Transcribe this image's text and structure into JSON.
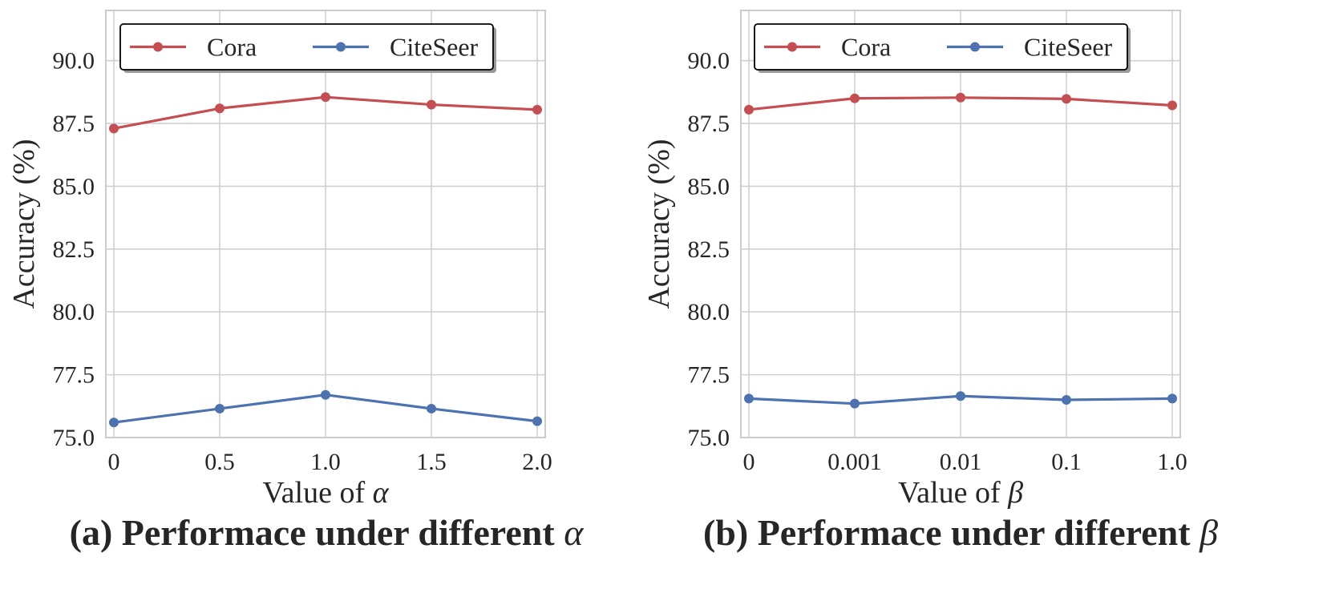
{
  "colors": {
    "cora": "#c44e52",
    "citeseer": "#4c72b0",
    "grid": "#d0d0d0",
    "text": "#262626"
  },
  "chart_data": [
    {
      "type": "line",
      "caption": {
        "prefix": "(a) Performace under different",
        "symbol": "α"
      },
      "xlabel": {
        "prefix": "Value of",
        "symbol": "α"
      },
      "ylabel": "Accuracy (%)",
      "categories": [
        "0",
        "0.5",
        "1.0",
        "1.5",
        "2.0"
      ],
      "ylim": [
        75.0,
        92.0
      ],
      "yticks": [
        "75.0",
        "77.5",
        "80.0",
        "82.5",
        "85.0",
        "87.5",
        "90.0"
      ],
      "grid": true,
      "legend": "top",
      "series": [
        {
          "name": "Cora",
          "color": "#c44e52",
          "values": [
            87.3,
            88.1,
            88.55,
            88.25,
            88.05
          ]
        },
        {
          "name": "CiteSeer",
          "color": "#4c72b0",
          "values": [
            75.6,
            76.15,
            76.7,
            76.15,
            75.65
          ]
        }
      ]
    },
    {
      "type": "line",
      "caption": {
        "prefix": "(b) Performace under different",
        "symbol": "β"
      },
      "xlabel": {
        "prefix": "Value of",
        "symbol": "β"
      },
      "ylabel": "Accuracy (%)",
      "categories": [
        "0",
        "0.001",
        "0.01",
        "0.1",
        "1.0"
      ],
      "ylim": [
        75.0,
        92.0
      ],
      "yticks": [
        "75.0",
        "77.5",
        "80.0",
        "82.5",
        "85.0",
        "87.5",
        "90.0"
      ],
      "grid": true,
      "legend": "top",
      "series": [
        {
          "name": "Cora",
          "color": "#c44e52",
          "values": [
            88.05,
            88.5,
            88.53,
            88.48,
            88.22
          ]
        },
        {
          "name": "CiteSeer",
          "color": "#4c72b0",
          "values": [
            76.55,
            76.35,
            76.65,
            76.5,
            76.55
          ]
        }
      ]
    }
  ]
}
